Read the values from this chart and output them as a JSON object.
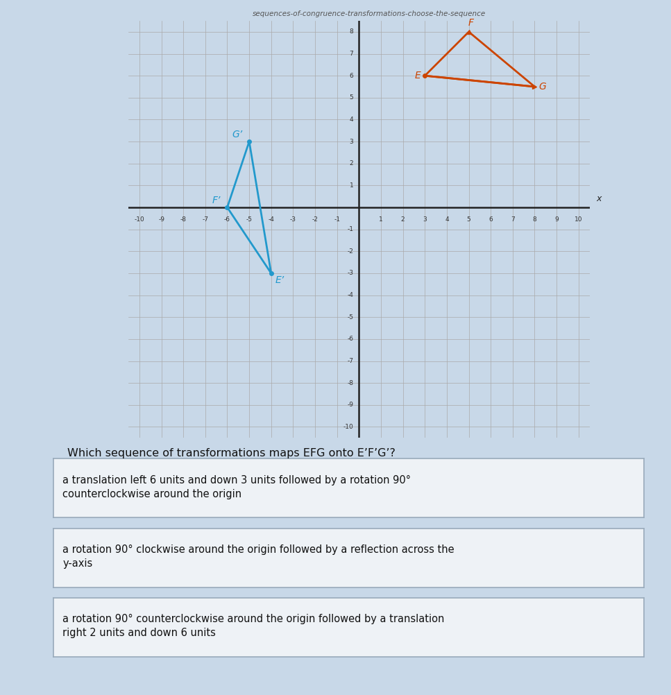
{
  "title": "sequences-of-congruence-transformations-choose-the-sequence",
  "question": "Which sequence of transformations maps EFG onto E’F’G’?",
  "orange_triangle": {
    "E": [
      3,
      6
    ],
    "F": [
      5,
      8
    ],
    "G": [
      8,
      5.5
    ],
    "color": "#cc4400",
    "label_E": "E",
    "label_F": "F",
    "label_G": "G"
  },
  "blue_triangle": {
    "E_prime": [
      -4,
      -3
    ],
    "F_prime": [
      -6,
      0
    ],
    "G_prime": [
      -5,
      3
    ],
    "color": "#2299cc",
    "label_E": "E’",
    "label_F": "F’",
    "label_G": "G’"
  },
  "xlim": [
    -10.5,
    10.5
  ],
  "ylim": [
    -10.5,
    8.5
  ],
  "xticks": [
    -10,
    -9,
    -8,
    -7,
    -6,
    -5,
    -4,
    -3,
    -2,
    -1,
    1,
    2,
    3,
    4,
    5,
    6,
    7,
    8,
    9,
    10
  ],
  "yticks": [
    -10,
    -9,
    -8,
    -7,
    -6,
    -5,
    -4,
    -3,
    -2,
    -1,
    1,
    2,
    3,
    4,
    5,
    6,
    7,
    8
  ],
  "choices": [
    "a translation left 6 units and down 3 units followed by a rotation 90°\ncounterclockwise around the origin",
    "a rotation 90° clockwise around the origin followed by a reflection across the\ny-axis",
    "a rotation 90° counterclockwise around the origin followed by a translation\nright 2 units and down 6 units"
  ],
  "graph_bg": "#d8e4d8",
  "page_bg": "#c8d8e8",
  "sidebar_color": "#7ab8d8",
  "grid_color": "#aaaaaa",
  "axis_color": "#222222",
  "choice_bg": "#eef2f6",
  "choice_border": "#99aabb",
  "question_color": "#111111"
}
